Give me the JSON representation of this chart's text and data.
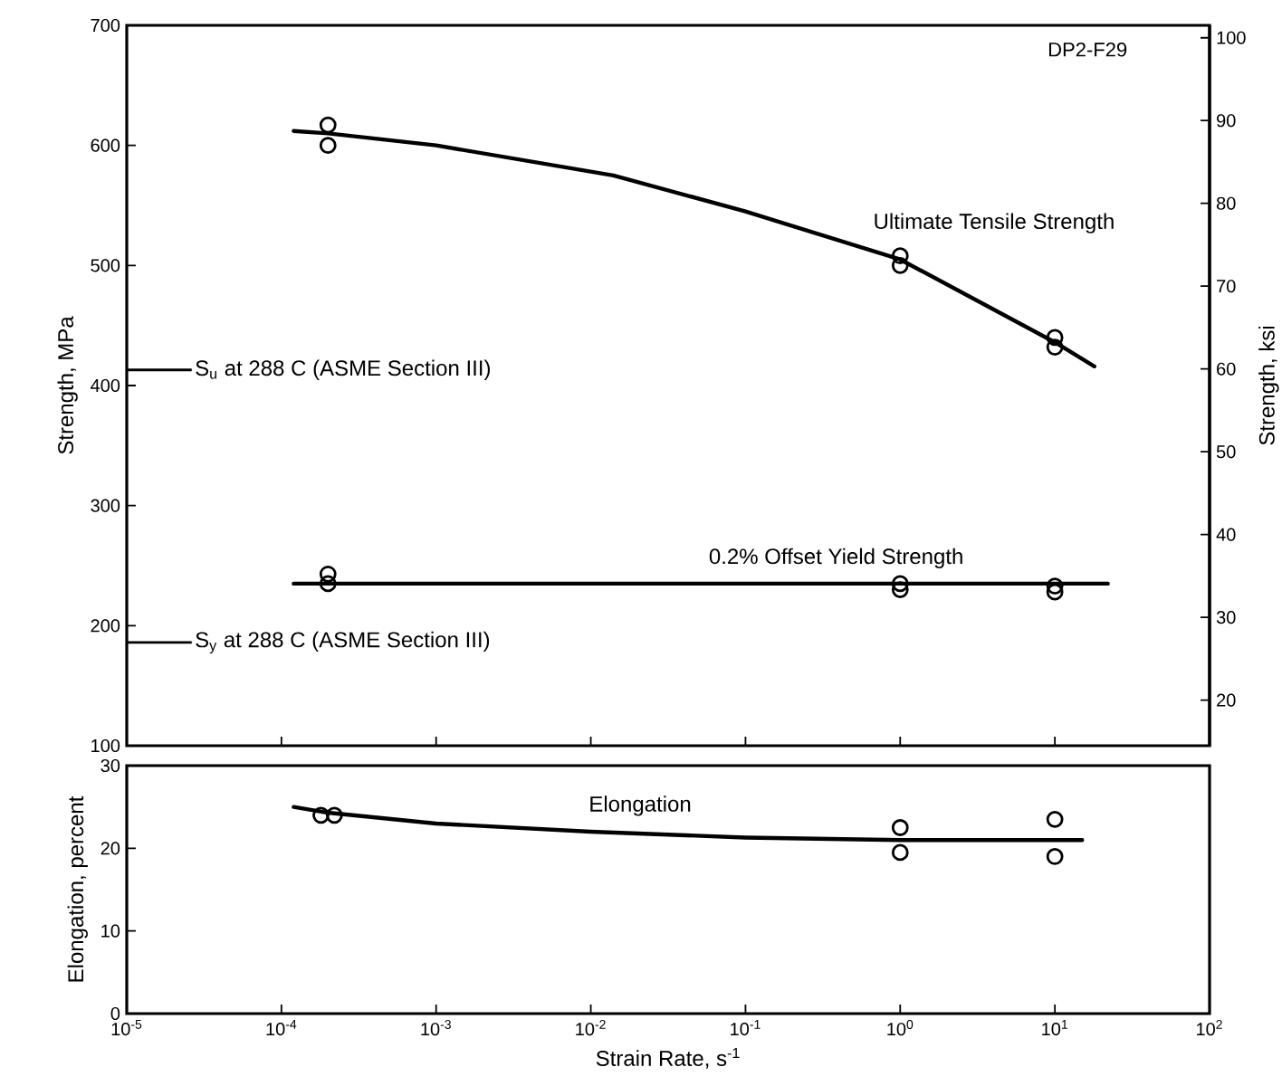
{
  "chart_data": [
    {
      "type": "line",
      "ylabel": "Strength, MPa",
      "y2label": "Strength, ksi",
      "log": "x",
      "grid": false,
      "tick_labels": "y",
      "xlim": [
        1e-05,
        100
      ],
      "xticks": [
        {
          "value": 1e-05,
          "label": null
        },
        {
          "value": 0.0001,
          "label": null
        },
        {
          "value": 0.001,
          "label": null
        },
        {
          "value": 0.01,
          "label": null
        },
        {
          "value": 0.1,
          "label": null
        },
        {
          "value": 1,
          "label": null
        },
        {
          "value": 10,
          "label": null
        },
        {
          "value": 100,
          "label": null
        }
      ],
      "ylim": [
        100,
        700
      ],
      "yticks": [
        100,
        200,
        300,
        400,
        500,
        600,
        700
      ],
      "y2lim": [
        14.5,
        101.5
      ],
      "y2ticks": [
        20,
        30,
        40,
        50,
        60,
        70,
        80,
        90,
        100
      ],
      "annotations": [
        "DP2-F29"
      ],
      "ref_lines": [
        {
          "axis": "y",
          "value": 413,
          "label": "S$_{u}$ at 288 C (ASME Section III)",
          "color": "#000000"
        },
        {
          "axis": "y",
          "value": 186,
          "label": "S$_{y}$ at 288 C (ASME Section III)",
          "color": "#000000"
        }
      ],
      "series": [
        {
          "name": "Ultimate Tensile Strength",
          "color": "#000000",
          "x": [
            0.00012,
            0.0002,
            0.001,
            0.014,
            0.1,
            1,
            10,
            18
          ],
          "values": [
            612,
            610,
            600,
            575,
            545,
            505,
            436,
            416
          ]
        },
        {
          "type": "scatter",
          "marker": "circle",
          "color": "#000000",
          "x": [
            0.0002,
            0.0002,
            1,
            1,
            10,
            10
          ],
          "values": [
            617,
            600,
            508,
            500,
            440,
            432
          ]
        },
        {
          "name": "0.2% Offset Yield Strength",
          "color": "#000000",
          "x": [
            0.00012,
            22
          ],
          "values": [
            235,
            235
          ]
        },
        {
          "type": "scatter",
          "marker": "circle",
          "color": "#000000",
          "x": [
            0.0002,
            0.0002,
            1,
            1,
            10,
            10
          ],
          "values": [
            243,
            235,
            235,
            230,
            233,
            228
          ]
        }
      ]
    },
    {
      "type": "line",
      "xlabel": "Strain Rate, s$^{-1}$",
      "ylabel": "Elongation, percent",
      "log": "x",
      "grid": false,
      "xlim": [
        1e-05,
        100
      ],
      "xticks": [
        {
          "value": 1e-05,
          "label": "10$^{-5}$"
        },
        {
          "value": 0.0001,
          "label": "10$^{-4}$"
        },
        {
          "value": 0.001,
          "label": "10$^{-3}$"
        },
        {
          "value": 0.01,
          "label": "10$^{-2}$"
        },
        {
          "value": 0.1,
          "label": "10$^{-1}$"
        },
        {
          "value": 1,
          "label": "10$^{0}$"
        },
        {
          "value": 10,
          "label": "10$^{1}$"
        },
        {
          "value": 100,
          "label": "10$^{2}$"
        }
      ],
      "ylim": [
        0,
        30
      ],
      "yticks": [
        0,
        10,
        20,
        30
      ],
      "series": [
        {
          "name": "Elongation",
          "color": "#000000",
          "x": [
            0.00012,
            0.0002,
            0.001,
            0.01,
            0.1,
            1,
            10,
            15
          ],
          "values": [
            25,
            24.3,
            23,
            22,
            21.3,
            21,
            21,
            21
          ]
        },
        {
          "type": "scatter",
          "marker": "circle",
          "color": "#000000",
          "x": [
            0.00018,
            0.00022,
            1,
            1,
            10,
            10
          ],
          "values": [
            24,
            24,
            22.5,
            19.5,
            23.5,
            19
          ]
        }
      ]
    }
  ]
}
